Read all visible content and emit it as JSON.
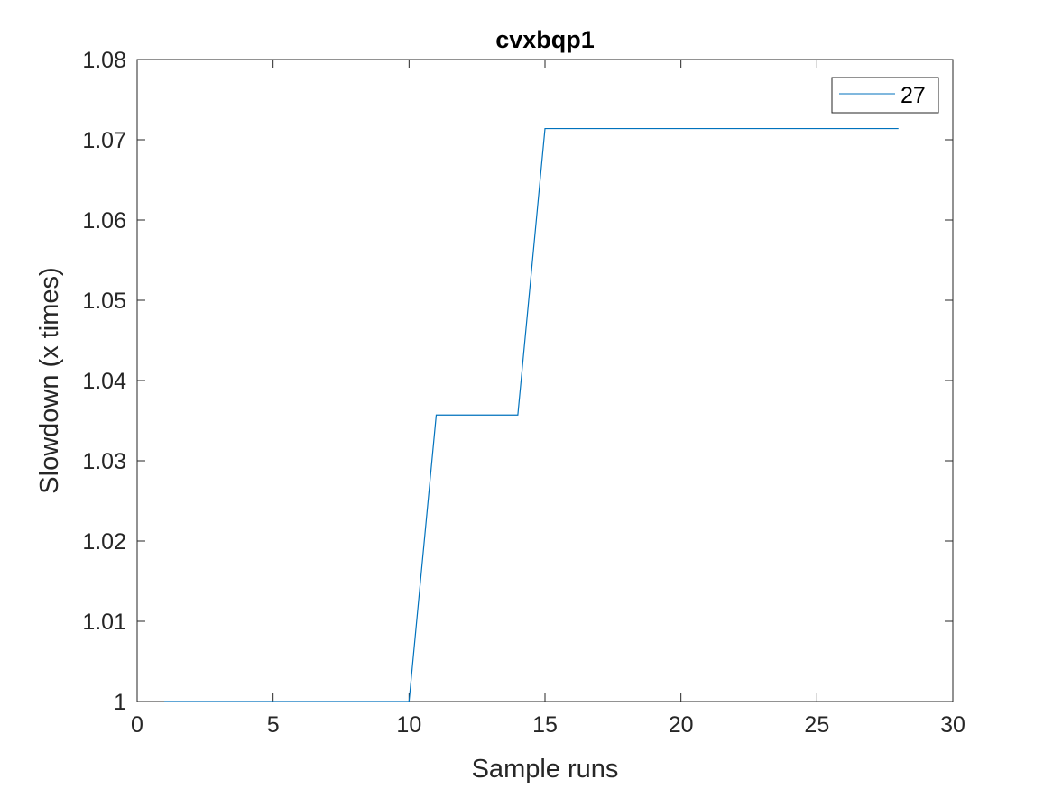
{
  "chart_data": {
    "type": "line",
    "title": "cvxbqp1",
    "xlabel": "Sample runs",
    "ylabel": "Slowdown (x times)",
    "xlim": [
      0,
      30
    ],
    "ylim": [
      1,
      1.08
    ],
    "xticks": [
      0,
      5,
      10,
      15,
      20,
      25,
      30
    ],
    "xtick_labels": [
      "0",
      "5",
      "10",
      "15",
      "20",
      "25",
      "30"
    ],
    "yticks": [
      1,
      1.01,
      1.02,
      1.03,
      1.04,
      1.05,
      1.06,
      1.07,
      1.08
    ],
    "ytick_labels": [
      "1",
      "1.01",
      "1.02",
      "1.03",
      "1.04",
      "1.05",
      "1.06",
      "1.07",
      "1.08"
    ],
    "grid": false,
    "legend_position": "top-right",
    "series": [
      {
        "name": "27",
        "color": "#0072BD",
        "x": [
          1,
          2,
          3,
          4,
          5,
          6,
          7,
          8,
          9,
          10,
          11,
          12,
          13,
          14,
          15,
          16,
          17,
          18,
          19,
          20,
          21,
          22,
          23,
          24,
          25,
          26,
          27,
          28
        ],
        "y": [
          1,
          1,
          1,
          1,
          1,
          1,
          1,
          1,
          1,
          1,
          1.0357,
          1.0357,
          1.0357,
          1.0357,
          1.0714,
          1.0714,
          1.0714,
          1.0714,
          1.0714,
          1.0714,
          1.0714,
          1.0714,
          1.0714,
          1.0714,
          1.0714,
          1.0714,
          1.0714,
          1.0714
        ]
      }
    ]
  }
}
